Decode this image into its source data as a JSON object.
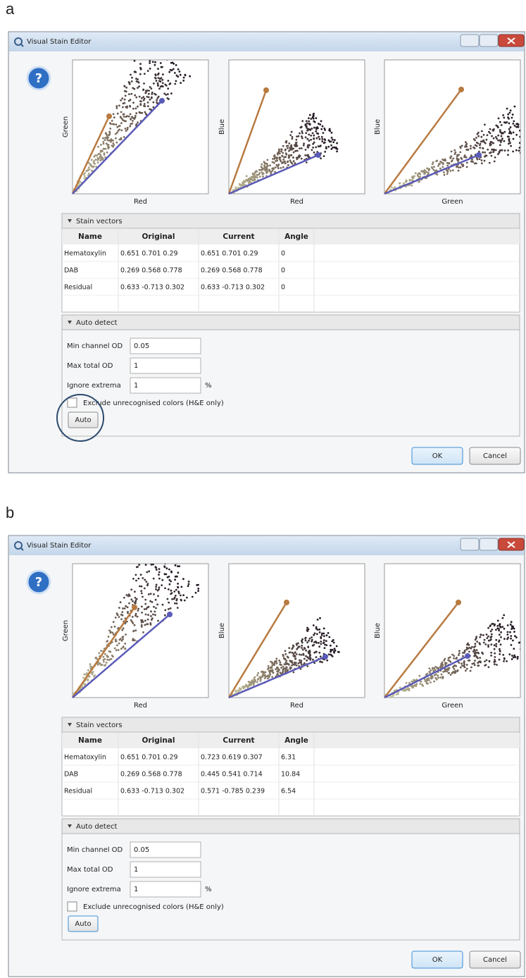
{
  "panels": [
    {
      "label": "a",
      "window_title": "Visual Stain Editor",
      "help_icon": "?",
      "plots": [
        {
          "x_label": "Red",
          "y_label": "Green"
        },
        {
          "x_label": "Red",
          "y_label": "Blue"
        },
        {
          "x_label": "Green",
          "y_label": "Blue"
        }
      ],
      "stain_vectors": {
        "title": "Stain vectors",
        "columns": [
          "Name",
          "Original",
          "Current",
          "Angle"
        ],
        "rows": [
          [
            "Hematoxylin",
            "0.651 0.701 0.29",
            "0.651 0.701 0.29",
            "0"
          ],
          [
            "DAB",
            "0.269 0.568 0.778",
            "0.269 0.568 0.778",
            "0"
          ],
          [
            "Residual",
            "0.633 -0.713 0.302",
            "0.633 -0.713 0.302",
            "0"
          ]
        ]
      },
      "auto_detect": {
        "title": "Auto detect",
        "fields": [
          {
            "label": "Min channel OD",
            "value": "0.05"
          },
          {
            "label": "Max total OD",
            "value": "1"
          },
          {
            "label": "Ignore extrema",
            "value": "1",
            "unit": "%"
          }
        ],
        "checkbox": "Exclude unrecognised colors (H&E only)",
        "button": "Auto"
      },
      "buttons": [
        "OK",
        "Cancel"
      ]
    },
    {
      "label": "b",
      "window_title": "Visual Stain Editor",
      "help_icon": "?",
      "plots": [
        {
          "x_label": "Red",
          "y_label": "Green"
        },
        {
          "x_label": "Red",
          "y_label": "Blue"
        },
        {
          "x_label": "Green",
          "y_label": "Blue"
        }
      ],
      "stain_vectors": {
        "title": "Stain vectors",
        "columns": [
          "Name",
          "Original",
          "Current",
          "Angle"
        ],
        "rows": [
          [
            "Hematoxylin",
            "0.651 0.701 0.29",
            "0.723 0.619 0.307",
            "6.31"
          ],
          [
            "DAB",
            "0.269 0.568 0.778",
            "0.445 0.541 0.714",
            "10.84"
          ],
          [
            "Residual",
            "0.633 -0.713 0.302",
            "0.571 -0.785 0.239",
            "6.54"
          ]
        ]
      },
      "auto_detect": {
        "title": "Auto detect",
        "fields": [
          {
            "label": "Min channel OD",
            "value": "0.05"
          },
          {
            "label": "Max total OD",
            "value": "1"
          },
          {
            "label": "Ignore extrema",
            "value": "1",
            "unit": "%"
          }
        ],
        "checkbox": "Exclude unrecognised colors (H&E only)",
        "button": "Auto"
      },
      "buttons": [
        "OK",
        "Cancel"
      ]
    }
  ]
}
